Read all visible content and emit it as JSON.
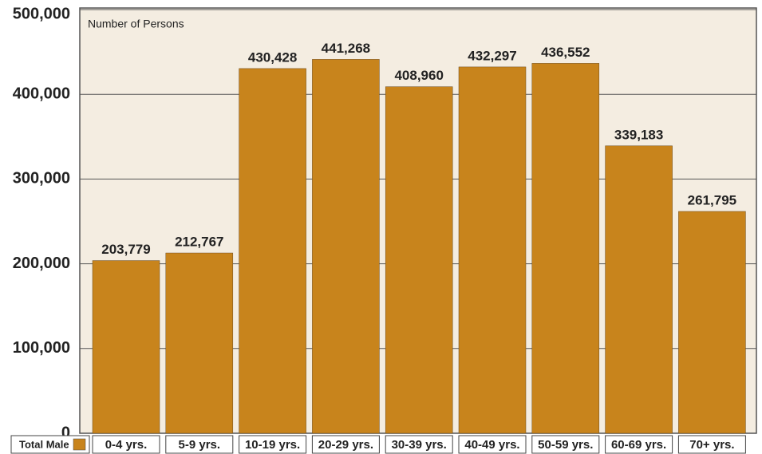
{
  "chart_data": {
    "type": "bar",
    "y_label": "Number of Persons",
    "categories": [
      "0-4 yrs.",
      "5-9 yrs.",
      "10-19 yrs.",
      "20-29 yrs.",
      "30-39 yrs.",
      "40-49 yrs.",
      "50-59 yrs.",
      "60-69 yrs.",
      "70+ yrs."
    ],
    "series": [
      {
        "name": "Total Male",
        "color": "#c8841c",
        "values": [
          203779,
          212767,
          430428,
          441268,
          408960,
          432297,
          436552,
          339183,
          261795
        ],
        "value_labels": [
          "203,779",
          "212,767",
          "430,428",
          "441,268",
          "408,960",
          "432,297",
          "436,552",
          "339,183",
          "261,795"
        ]
      }
    ],
    "ylim": [
      0,
      500000
    ],
    "yticks": [
      0,
      {
        "value": 100000,
        "label": "100,000"
      },
      {
        "value": 200000,
        "label": "200,000"
      },
      {
        "value": 300000,
        "label": "300,000"
      },
      {
        "value": 400000,
        "label": "400,000"
      },
      {
        "value": 500000,
        "label": "500,000"
      }
    ],
    "grid": true
  }
}
